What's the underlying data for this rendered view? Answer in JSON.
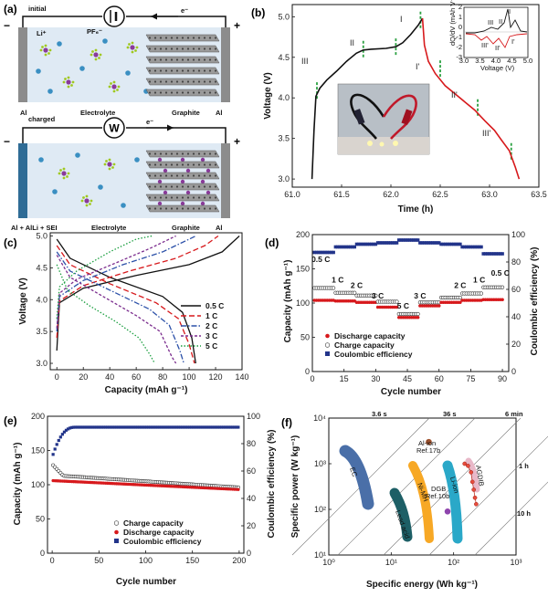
{
  "panels": {
    "a": {
      "label": "(a)",
      "top": {
        "state": "initial",
        "ions": [
          "Li⁺",
          "PF₆⁻"
        ],
        "electron": "e⁻",
        "electrolyte": "Electrolyte",
        "graphite": "Graphite",
        "al_left": "Al",
        "al_right": "Al",
        "minus": "−",
        "plus": "+"
      },
      "bottom": {
        "state": "charged",
        "meter": "W",
        "electron": "e⁻",
        "anode": "Al + AlLi + SEI",
        "electrolyte": "Electrolyte",
        "graphite": "Graphite",
        "al_right": "Al",
        "minus": "−",
        "plus": "+"
      }
    },
    "b": {
      "label": "(b)",
      "xlabel": "Time (h)",
      "ylabel": "Voltage (V)",
      "stage_labels": {
        "I": "I",
        "II": "II",
        "III": "III",
        "Ip": "I'",
        "IIp": "II'",
        "IIIp": "III'"
      },
      "inset": {
        "ylabel": "dQ/dV (mAh V⁻¹)",
        "xlabel": "Voltage (V)",
        "labels": [
          "III'",
          "II'",
          "I'",
          "II",
          "I",
          "III"
        ]
      }
    },
    "c": {
      "label": "(c)"
    },
    "d": {
      "label": "(d)"
    },
    "e": {
      "label": "(e)"
    },
    "f": {
      "label": "(f)",
      "top_ticks": [
        "3.6 s",
        "36 s",
        "6 min"
      ],
      "right_ticks": [
        "1 h",
        "10 h"
      ],
      "regions": [
        "EC",
        "Ni-MH",
        "Lead acid",
        "Li-ion",
        "AGDIB"
      ],
      "points": [
        {
          "name": "Al-ion",
          "ref": "Ref.17b"
        },
        {
          "name": "DGB",
          "ref": "Ref.10b"
        }
      ]
    }
  },
  "chart_data": [
    {
      "id": "b",
      "type": "line",
      "xlabel": "Time (h)",
      "ylabel": "Voltage (V)",
      "xlim": [
        61.0,
        63.5
      ],
      "ylim": [
        2.9,
        5.15
      ],
      "xticks": [
        61.0,
        61.5,
        62.0,
        62.5,
        63.0,
        63.5
      ],
      "yticks": [
        3.0,
        3.5,
        4.0,
        4.5,
        5.0
      ],
      "series": [
        {
          "name": "charge",
          "color": "#111111",
          "x": [
            61.2,
            61.22,
            61.24,
            61.28,
            61.35,
            61.45,
            61.55,
            61.65,
            61.72,
            61.8,
            61.95,
            62.05,
            62.12,
            62.2,
            62.28,
            62.32
          ],
          "y": [
            3.0,
            3.6,
            4.02,
            4.12,
            4.22,
            4.33,
            4.45,
            4.55,
            4.59,
            4.6,
            4.61,
            4.63,
            4.68,
            4.78,
            4.9,
            4.98
          ]
        },
        {
          "name": "discharge",
          "color": "#d7191c",
          "x": [
            62.32,
            62.34,
            62.38,
            62.45,
            62.55,
            62.65,
            62.75,
            62.85,
            62.95,
            63.05,
            63.12,
            63.2,
            63.26,
            63.3
          ],
          "y": [
            4.98,
            4.65,
            4.45,
            4.3,
            4.15,
            4.05,
            3.95,
            3.85,
            3.72,
            3.6,
            3.48,
            3.35,
            3.15,
            3.0
          ]
        }
      ],
      "inset": {
        "xlim": [
          3.0,
          5.0
        ],
        "xticks": [
          3.0,
          3.5,
          4.0,
          4.5,
          5.0
        ],
        "ylim": [
          -3,
          2
        ],
        "yticks": [
          -3,
          -2,
          -1,
          0,
          1,
          2
        ]
      }
    },
    {
      "id": "c",
      "type": "line",
      "xlabel": "Capacity (mAh g⁻¹)",
      "ylabel": "Voltage (V)",
      "xlim": [
        -5,
        140
      ],
      "ylim": [
        2.9,
        5.05
      ],
      "xticks": [
        0,
        20,
        40,
        60,
        80,
        100,
        120,
        140
      ],
      "yticks": [
        3.0,
        3.5,
        4.0,
        4.5,
        5.0
      ],
      "series": [
        {
          "name": "0.5 C",
          "color": "#111111",
          "dash": "",
          "charge": [
            [
              0,
              3.2
            ],
            [
              2,
              3.95
            ],
            [
              20,
              4.18
            ],
            [
              60,
              4.38
            ],
            [
              100,
              4.55
            ],
            [
              125,
              4.75
            ],
            [
              138,
              5.0
            ]
          ],
          "discharge": [
            [
              0,
              4.95
            ],
            [
              10,
              4.65
            ],
            [
              40,
              4.35
            ],
            [
              80,
              4.05
            ],
            [
              95,
              3.8
            ],
            [
              102,
              3.4
            ],
            [
              105,
              3.0
            ]
          ]
        },
        {
          "name": "1 C",
          "color": "#d7191c",
          "dash": "6,3",
          "charge": [
            [
              0,
              3.4
            ],
            [
              2,
              3.98
            ],
            [
              20,
              4.22
            ],
            [
              55,
              4.45
            ],
            [
              90,
              4.65
            ],
            [
              112,
              4.85
            ],
            [
              122,
              5.0
            ]
          ],
          "discharge": [
            [
              0,
              4.85
            ],
            [
              10,
              4.55
            ],
            [
              40,
              4.25
            ],
            [
              75,
              3.95
            ],
            [
              92,
              3.7
            ],
            [
              100,
              3.3
            ],
            [
              104,
              3.0
            ]
          ]
        },
        {
          "name": "2 C",
          "color": "#2b50a8",
          "dash": "6,2,1.5,2",
          "charge": [
            [
              0,
              3.5
            ],
            [
              2,
              4.05
            ],
            [
              20,
              4.3
            ],
            [
              50,
              4.55
            ],
            [
              80,
              4.75
            ],
            [
              100,
              4.95
            ],
            [
              105,
              5.0
            ]
          ],
          "discharge": [
            [
              0,
              4.75
            ],
            [
              10,
              4.45
            ],
            [
              40,
              4.15
            ],
            [
              70,
              3.85
            ],
            [
              85,
              3.6
            ],
            [
              93,
              3.2
            ],
            [
              96,
              3.0
            ]
          ]
        },
        {
          "name": "3 C",
          "color": "#7b2d8e",
          "dash": "3,2",
          "charge": [
            [
              0,
              3.55
            ],
            [
              2,
              4.1
            ],
            [
              15,
              4.32
            ],
            [
              45,
              4.58
            ],
            [
              70,
              4.8
            ],
            [
              90,
              5.0
            ]
          ],
          "discharge": [
            [
              0,
              4.7
            ],
            [
              10,
              4.35
            ],
            [
              35,
              4.05
            ],
            [
              60,
              3.75
            ],
            [
              78,
              3.5
            ],
            [
              87,
              3.1
            ],
            [
              90,
              3.0
            ]
          ]
        },
        {
          "name": "5 C",
          "color": "#1a9e3f",
          "dash": "1.5,2",
          "charge": [
            [
              0,
              3.7
            ],
            [
              2,
              4.2
            ],
            [
              15,
              4.45
            ],
            [
              40,
              4.75
            ],
            [
              60,
              4.95
            ],
            [
              72,
              5.0
            ]
          ],
          "discharge": [
            [
              0,
              4.55
            ],
            [
              8,
              4.15
            ],
            [
              25,
              3.9
            ],
            [
              45,
              3.65
            ],
            [
              62,
              3.4
            ],
            [
              70,
              3.15
            ],
            [
              74,
              3.0
            ]
          ]
        }
      ]
    },
    {
      "id": "d",
      "type": "scatter",
      "xlabel": "Cycle number",
      "ylabel": "Capacity (mAh g⁻¹)",
      "y2label": "Coulombic efficiency (%)",
      "xlim": [
        0,
        93
      ],
      "ylim": [
        0,
        200
      ],
      "y2lim": [
        0,
        100
      ],
      "xticks": [
        0,
        15,
        30,
        45,
        60,
        75,
        90
      ],
      "yticks": [
        0,
        50,
        100,
        150,
        200
      ],
      "y2ticks": [
        0,
        20,
        40,
        60,
        80,
        100
      ],
      "rate_labels": [
        {
          "text": "0.5 C",
          "x": 4,
          "y": 160
        },
        {
          "text": "1 C",
          "x": 12,
          "y": 130
        },
        {
          "text": "2 C",
          "x": 21,
          "y": 122
        },
        {
          "text": "3 C",
          "x": 31,
          "y": 107
        },
        {
          "text": "5 C",
          "x": 43,
          "y": 92
        },
        {
          "text": "3 C",
          "x": 51,
          "y": 107
        },
        {
          "text": "2 C",
          "x": 70,
          "y": 122
        },
        {
          "text": "1 C",
          "x": 79,
          "y": 130
        },
        {
          "text": "0.5 C",
          "x": 89,
          "y": 140
        }
      ],
      "legend": [
        "Discharge capacity",
        "Charge capacity",
        "Coulombic efficiency"
      ],
      "blocks": [
        {
          "start": 1,
          "end": 10,
          "discharge": 104,
          "charge": 122,
          "ce": 87
        },
        {
          "start": 11,
          "end": 20,
          "discharge": 103,
          "charge": 115,
          "ce": 91
        },
        {
          "start": 21,
          "end": 30,
          "discharge": 101,
          "charge": 111,
          "ce": 93
        },
        {
          "start": 31,
          "end": 40,
          "discharge": 94,
          "charge": 102,
          "ce": 94
        },
        {
          "start": 41,
          "end": 50,
          "discharge": 79,
          "charge": 84,
          "ce": 96
        },
        {
          "start": 51,
          "end": 60,
          "discharge": 96,
          "charge": 101,
          "ce": 94
        },
        {
          "start": 61,
          "end": 70,
          "discharge": 101,
          "charge": 108,
          "ce": 93
        },
        {
          "start": 71,
          "end": 80,
          "discharge": 104,
          "charge": 114,
          "ce": 91
        },
        {
          "start": 81,
          "end": 90,
          "discharge": 105,
          "charge": 123,
          "ce": 86
        }
      ]
    },
    {
      "id": "e",
      "type": "scatter",
      "xlabel": "Cycle number",
      "ylabel": "Capacity (mAh g⁻¹)",
      "y2label": "Coulombic efficiency (%)",
      "xlim": [
        -5,
        205
      ],
      "ylim": [
        0,
        200
      ],
      "y2lim": [
        0,
        100
      ],
      "xticks": [
        0,
        50,
        100,
        150,
        200
      ],
      "yticks": [
        0,
        50,
        100,
        150,
        200
      ],
      "y2ticks": [
        0,
        20,
        40,
        60,
        80,
        100
      ],
      "legend": [
        "Charge capacity",
        "Discharge capacity",
        "Coulombic efficiency"
      ],
      "discharge_start": 106,
      "discharge_end": 93,
      "charge_start": 130,
      "charge_mid": 113,
      "charge_end": 96,
      "ce_start": 70,
      "ce_plateau": 92
    },
    {
      "id": "f",
      "type": "ragone",
      "xlabel": "Specific energy (Wh kg⁻¹)",
      "ylabel": "Specific power (W kg⁻¹)",
      "xlog": [
        0,
        3
      ],
      "ylog": [
        1,
        4
      ],
      "xticks": [
        "10⁰",
        "10¹",
        "10²",
        "10³"
      ],
      "yticks": [
        "10¹",
        "10²",
        "10³",
        "10⁴"
      ],
      "agdib_points": [
        [
          150,
          1000
        ],
        [
          170,
          900
        ],
        [
          190,
          650
        ],
        [
          200,
          400
        ],
        [
          210,
          270
        ],
        [
          220,
          180
        ],
        [
          230,
          130
        ]
      ],
      "al_ion": [
        40,
        3000
      ],
      "dgb": [
        80,
        90
      ]
    }
  ]
}
